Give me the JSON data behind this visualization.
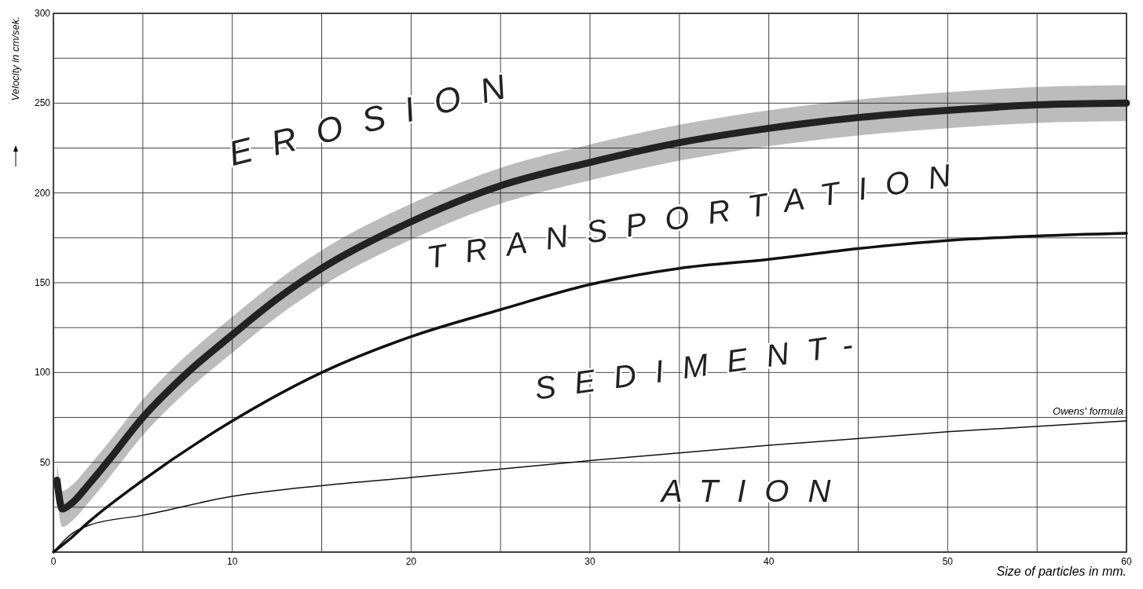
{
  "chart_data": {
    "type": "line",
    "xlabel": "Size of particles in mm.",
    "ylabel": "Velocity in cm/sek.",
    "xlim": [
      0,
      60
    ],
    "ylim": [
      0,
      300
    ],
    "xticks": [
      0,
      {
        "value": 5,
        "label": null
      },
      10,
      {
        "value": 15,
        "label": null
      },
      20,
      {
        "value": 25,
        "label": null
      },
      30,
      {
        "value": 35,
        "label": null
      },
      40,
      {
        "value": 45,
        "label": null
      },
      50,
      {
        "value": 55,
        "label": null
      },
      60
    ],
    "yticks": [
      {
        "value": 25,
        "label": null
      },
      50,
      {
        "value": 75,
        "label": null
      },
      100,
      {
        "value": 125,
        "label": null
      },
      150,
      {
        "value": 175,
        "label": null
      },
      200,
      {
        "value": 225,
        "label": null
      },
      250,
      {
        "value": 275,
        "label": null
      },
      300
    ],
    "grid": true,
    "legend": false,
    "series": [
      {
        "color": "#222222",
        "x": [
          0.2,
          0.5,
          1,
          2,
          3,
          5,
          7.5,
          10,
          12.5,
          15,
          20,
          25,
          30,
          35,
          40,
          45,
          50,
          55,
          60
        ],
        "values": [
          40,
          24,
          27,
          38,
          50,
          75,
          100,
          121,
          141,
          158,
          184,
          204,
          217,
          228,
          236,
          242,
          246,
          249,
          250
        ],
        "lower": [
          30,
          14,
          17,
          28,
          40,
          65,
          90,
          111,
          131,
          148,
          174,
          194,
          207,
          218,
          226,
          232,
          236,
          239,
          240
        ],
        "upper": [
          50,
          34,
          37,
          48,
          60,
          85,
          110,
          131,
          151,
          168,
          194,
          214,
          227,
          238,
          246,
          252,
          256,
          259,
          260
        ]
      },
      {
        "color": "#111111",
        "x": [
          0,
          1,
          2,
          5,
          10,
          15,
          20,
          25,
          30,
          35,
          40,
          45,
          50,
          55,
          60
        ],
        "values": [
          0,
          8,
          17,
          40,
          73,
          100,
          120,
          135,
          149,
          158,
          163,
          169,
          173.5,
          176,
          177.5
        ]
      },
      {
        "name": "Owens' formula",
        "color": "#111111",
        "x": [
          0,
          1,
          2,
          5,
          10,
          15,
          20,
          30,
          40,
          50,
          60
        ],
        "values": [
          0,
          10,
          15,
          20.5,
          31,
          37,
          41.5,
          51,
          59.5,
          67,
          73
        ]
      }
    ],
    "annotations": [
      "EROSION",
      "TRANSPORTATION",
      "SEDIMENT-",
      "ATION"
    ]
  }
}
